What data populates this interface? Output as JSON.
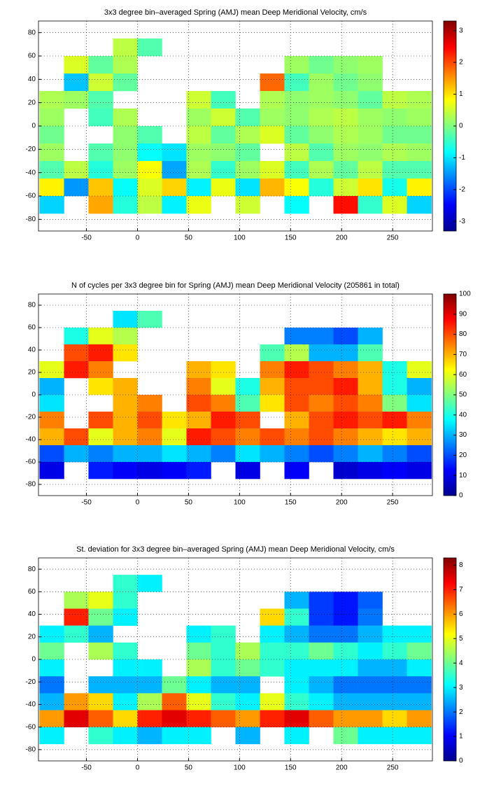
{
  "chart_data": [
    {
      "type": "heatmap",
      "title": "3x3 degree bin–averaged Spring (AMJ) mean Deep Meridional Velocity, cm/s",
      "x": [
        -84,
        -60,
        -36,
        -12,
        12,
        36,
        60,
        84,
        108,
        132,
        156,
        180,
        204,
        228,
        252,
        276
      ],
      "y": [
        82.5,
        67.5,
        52.5,
        37.5,
        22.5,
        7.5,
        -7.5,
        -22.5,
        -37.5,
        -52.5,
        -67.5
      ],
      "values": [
        [
          null,
          null,
          null,
          null,
          null,
          null,
          null,
          null,
          null,
          null,
          null,
          null,
          null,
          null,
          null,
          null
        ],
        [
          null,
          null,
          null,
          0.4,
          -0.3,
          null,
          null,
          null,
          null,
          null,
          null,
          null,
          null,
          null,
          null,
          null
        ],
        [
          null,
          0.6,
          -0.2,
          0.3,
          null,
          null,
          null,
          null,
          null,
          null,
          0.2,
          -0.1,
          0.1,
          0.2,
          null,
          null
        ],
        [
          null,
          -1.2,
          0.5,
          -0.2,
          null,
          null,
          null,
          null,
          null,
          1.8,
          -0.4,
          0.2,
          -0.1,
          0.1,
          null,
          null
        ],
        [
          0.3,
          0.2,
          -0.3,
          null,
          null,
          null,
          0.5,
          -0.4,
          null,
          0.3,
          0.1,
          0.2,
          0.1,
          -0.2,
          0.4,
          0.3
        ],
        [
          0.2,
          null,
          -0.4,
          0.3,
          null,
          null,
          0.2,
          0.5,
          -0.3,
          0.2,
          0.1,
          0.3,
          0.4,
          0.2,
          0.1,
          0.2
        ],
        [
          -0.1,
          null,
          null,
          0.1,
          -0.3,
          null,
          0.4,
          -0.2,
          0.3,
          0.6,
          -0.2,
          0.1,
          0.3,
          0.2,
          -0.1,
          -0.1
        ],
        [
          0.2,
          null,
          -0.3,
          0.1,
          -0.8,
          -1.0,
          0.2,
          0.1,
          -0.2,
          null,
          0.4,
          -0.3,
          0.2,
          0.1,
          0.3,
          0.2
        ],
        [
          -0.3,
          0.4,
          -0.6,
          0.2,
          0.8,
          -1.4,
          0.3,
          -0.5,
          0.2,
          0.6,
          -0.4,
          0.3,
          -0.2,
          0.4,
          -0.3,
          -0.3
        ],
        [
          0.9,
          -1.5,
          1.2,
          -0.8,
          0.6,
          1.1,
          -0.9,
          0.7,
          -1.0,
          1.3,
          0.8,
          -0.6,
          0.5,
          1.0,
          -0.7,
          0.9
        ],
        [
          -1.1,
          null,
          1.4,
          -0.6,
          0.4,
          -0.9,
          0.7,
          null,
          0.5,
          null,
          -0.8,
          null,
          2.4,
          -0.5,
          0.6,
          -1.1
        ]
      ],
      "xlim": [
        -97,
        289
      ],
      "ylim": [
        -90,
        90
      ],
      "xticks": [
        -50,
        0,
        50,
        100,
        150,
        200,
        250
      ],
      "yticks": [
        -80,
        -60,
        -40,
        -20,
        0,
        20,
        40,
        60,
        80
      ],
      "grid": true,
      "clim": [
        -3.3,
        3.3
      ],
      "cticks": [
        -3,
        -2,
        -1,
        0,
        1,
        2,
        3
      ]
    },
    {
      "type": "heatmap",
      "title": "N of cycles per 3x3 degree bin for Spring (AMJ) mean Deep Meridional Velocity (205861 in total)",
      "x": [
        -84,
        -60,
        -36,
        -12,
        12,
        36,
        60,
        84,
        108,
        132,
        156,
        180,
        204,
        228,
        252,
        276
      ],
      "y": [
        82.5,
        67.5,
        52.5,
        37.5,
        22.5,
        7.5,
        -7.5,
        -22.5,
        -37.5,
        -52.5,
        -67.5
      ],
      "values": [
        [
          null,
          null,
          null,
          null,
          null,
          null,
          null,
          null,
          null,
          null,
          null,
          null,
          null,
          null,
          null,
          null
        ],
        [
          null,
          null,
          null,
          35,
          45,
          null,
          null,
          null,
          null,
          null,
          null,
          null,
          null,
          null,
          null,
          null
        ],
        [
          null,
          40,
          60,
          55,
          null,
          null,
          null,
          null,
          null,
          null,
          25,
          25,
          20,
          30,
          null,
          null
        ],
        [
          null,
          80,
          85,
          65,
          null,
          null,
          null,
          null,
          null,
          45,
          55,
          30,
          30,
          45,
          null,
          null
        ],
        [
          60,
          85,
          75,
          null,
          null,
          null,
          70,
          65,
          null,
          75,
          85,
          80,
          75,
          70,
          40,
          60
        ],
        [
          30,
          null,
          65,
          70,
          null,
          null,
          75,
          60,
          40,
          70,
          80,
          80,
          85,
          70,
          40,
          30
        ],
        [
          35,
          null,
          null,
          70,
          75,
          null,
          80,
          75,
          45,
          65,
          80,
          75,
          80,
          75,
          50,
          35
        ],
        [
          75,
          null,
          80,
          70,
          80,
          65,
          70,
          85,
          80,
          null,
          70,
          80,
          85,
          80,
          85,
          75
        ],
        [
          70,
          80,
          60,
          70,
          75,
          60,
          85,
          80,
          75,
          80,
          75,
          80,
          75,
          70,
          65,
          70
        ],
        [
          20,
          30,
          25,
          30,
          30,
          35,
          30,
          25,
          35,
          30,
          25,
          20,
          25,
          30,
          25,
          20
        ],
        [
          10,
          null,
          15,
          12,
          10,
          12,
          15,
          null,
          10,
          null,
          12,
          null,
          8,
          10,
          12,
          10
        ]
      ],
      "xlim": [
        -97,
        289
      ],
      "ylim": [
        -90,
        90
      ],
      "xticks": [
        -50,
        0,
        50,
        100,
        150,
        200,
        250
      ],
      "yticks": [
        -80,
        -60,
        -40,
        -20,
        0,
        20,
        40,
        60,
        80
      ],
      "grid": true,
      "clim": [
        0,
        100
      ],
      "cticks": [
        0,
        10,
        20,
        30,
        40,
        50,
        60,
        70,
        80,
        90,
        100
      ]
    },
    {
      "type": "heatmap",
      "title": "St. deviation for 3x3 degree bin–averaged Spring (AMJ) mean Deep Meridional Velocity, cm/s",
      "x": [
        -84,
        -60,
        -36,
        -12,
        12,
        36,
        60,
        84,
        108,
        132,
        156,
        180,
        204,
        228,
        252,
        276
      ],
      "y": [
        82.5,
        67.5,
        52.5,
        37.5,
        22.5,
        7.5,
        -7.5,
        -22.5,
        -37.5,
        -52.5,
        -67.5
      ],
      "values": [
        [
          null,
          null,
          null,
          null,
          null,
          null,
          null,
          null,
          null,
          null,
          null,
          null,
          null,
          null,
          null,
          null
        ],
        [
          null,
          null,
          null,
          3.5,
          3.0,
          null,
          null,
          null,
          null,
          null,
          null,
          null,
          null,
          null,
          null,
          null
        ],
        [
          null,
          4.5,
          5.0,
          3.5,
          null,
          null,
          null,
          null,
          null,
          null,
          2.5,
          1.5,
          1.2,
          1.8,
          null,
          null
        ],
        [
          null,
          7.0,
          4.0,
          3.0,
          null,
          null,
          null,
          null,
          null,
          5.5,
          3.5,
          1.5,
          1.2,
          2.0,
          null,
          null
        ],
        [
          3.0,
          3.5,
          2.5,
          null,
          null,
          null,
          3.0,
          3.5,
          null,
          3.0,
          2.5,
          2.0,
          2.0,
          2.5,
          3.0,
          3.0
        ],
        [
          4.0,
          null,
          4.5,
          3.5,
          null,
          null,
          4.0,
          3.5,
          4.5,
          3.5,
          3.5,
          4.0,
          3.5,
          3.0,
          3.5,
          4.0
        ],
        [
          3.0,
          null,
          null,
          3.0,
          3.0,
          null,
          4.5,
          3.5,
          4.0,
          3.5,
          3.0,
          3.0,
          3.0,
          2.5,
          2.5,
          3.0
        ],
        [
          2.0,
          null,
          2.5,
          2.5,
          2.5,
          4.0,
          3.0,
          2.5,
          2.5,
          null,
          3.0,
          2.5,
          2.0,
          2.0,
          2.0,
          2.0
        ],
        [
          2.5,
          6.0,
          5.5,
          3.0,
          4.5,
          6.5,
          5.0,
          3.5,
          3.0,
          5.0,
          3.5,
          3.0,
          2.5,
          2.5,
          2.5,
          2.5
        ],
        [
          6.0,
          7.5,
          6.5,
          5.5,
          7.0,
          7.5,
          7.0,
          6.5,
          6.0,
          7.0,
          7.5,
          6.5,
          6.0,
          6.0,
          5.5,
          6.0
        ],
        [
          3.0,
          null,
          3.5,
          3.0,
          2.5,
          3.0,
          3.0,
          null,
          2.5,
          null,
          3.0,
          null,
          4.0,
          3.0,
          3.0,
          3.0
        ]
      ],
      "xlim": [
        -97,
        289
      ],
      "ylim": [
        -90,
        90
      ],
      "xticks": [
        -50,
        0,
        50,
        100,
        150,
        200,
        250
      ],
      "yticks": [
        -80,
        -60,
        -40,
        -20,
        0,
        20,
        40,
        60,
        80
      ],
      "grid": true,
      "clim": [
        0,
        8.3
      ],
      "cticks": [
        0,
        1,
        2,
        3,
        4,
        5,
        6,
        7,
        8
      ]
    }
  ]
}
